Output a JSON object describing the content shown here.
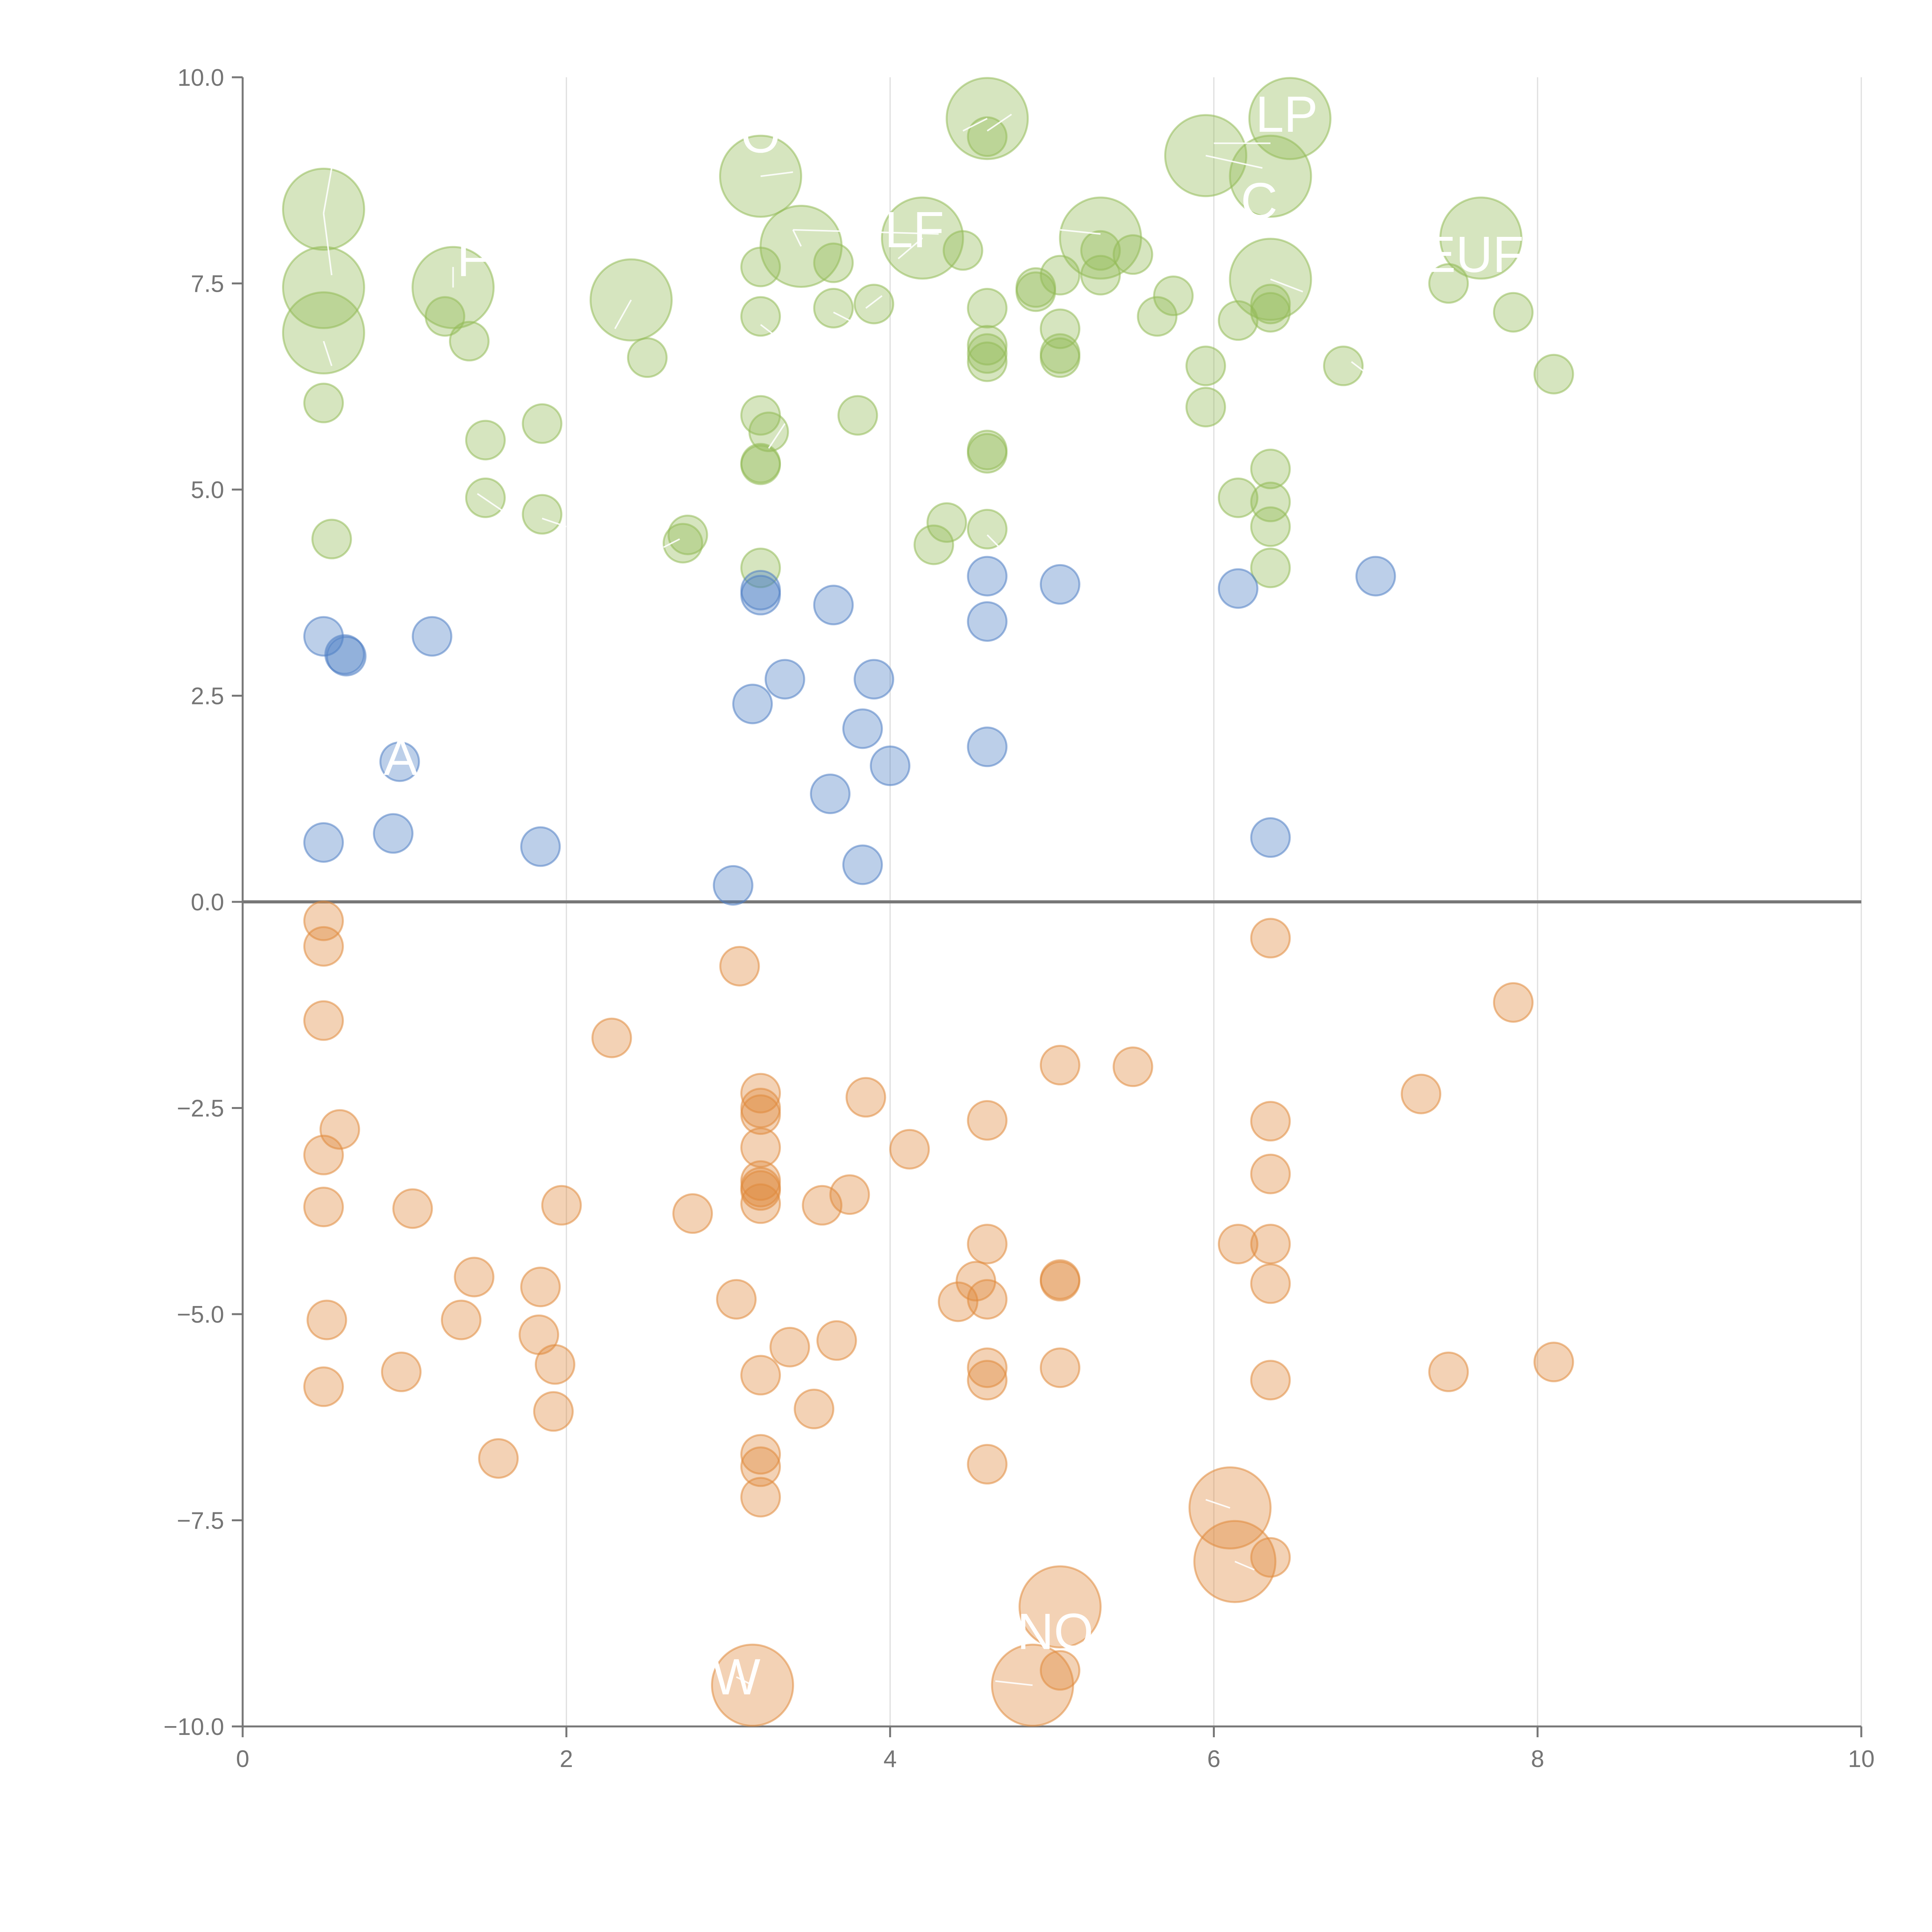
{
  "chart_data": {
    "type": "scatter",
    "xlim": [
      0,
      10
    ],
    "ylim": [
      -10,
      10
    ],
    "x_ticks": [
      0,
      2,
      4,
      6,
      8,
      10
    ],
    "x_tick_labels": [
      "0",
      "2",
      "4",
      "6",
      "8",
      "10"
    ],
    "y_ticks": [
      10,
      7.5,
      5,
      2.5,
      0,
      -2.5,
      -5,
      -7.5,
      -10
    ],
    "y_tick_labels": [
      "10.0",
      "7.5",
      "5.0",
      "2.5",
      "0.0",
      "−2.5",
      "−5.0",
      "−7.5",
      "−10.0"
    ],
    "grid": "vertical",
    "zero_line": true,
    "colors": {
      "green": "#93bb58",
      "blue": "#5080c4",
      "orange": "#e08a3c"
    },
    "series": [
      {
        "color_key": "green",
        "points": [
          [
            0.5,
            8.4,
            "l"
          ],
          [
            0.5,
            7.45,
            "l"
          ],
          [
            0.5,
            6.9,
            "l"
          ],
          [
            0.5,
            6.05
          ],
          [
            0.55,
            4.4
          ],
          [
            1.3,
            7.45,
            "l"
          ],
          [
            1.25,
            7.1
          ],
          [
            1.4,
            6.8
          ],
          [
            1.5,
            5.6
          ],
          [
            1.5,
            4.9
          ],
          [
            1.85,
            5.8
          ],
          [
            1.85,
            4.7
          ],
          [
            2.4,
            7.3,
            "l"
          ],
          [
            2.5,
            6.6
          ],
          [
            2.75,
            4.45
          ],
          [
            2.72,
            4.35
          ],
          [
            3.2,
            8.8,
            "l"
          ],
          [
            3.2,
            7.7
          ],
          [
            3.2,
            7.1
          ],
          [
            3.2,
            5.9
          ],
          [
            3.25,
            5.7
          ],
          [
            3.2,
            5.3
          ],
          [
            3.2,
            5.32
          ],
          [
            3.2,
            4.05
          ],
          [
            3.45,
            7.95,
            "l"
          ],
          [
            3.65,
            7.75
          ],
          [
            3.65,
            7.2
          ],
          [
            3.9,
            7.25
          ],
          [
            3.8,
            5.9
          ],
          [
            4.2,
            8.05,
            "l"
          ],
          [
            4.45,
            7.9
          ],
          [
            4.35,
            4.6
          ],
          [
            4.27,
            4.33
          ],
          [
            4.6,
            9.5,
            "l"
          ],
          [
            4.6,
            9.28
          ],
          [
            4.6,
            7.2
          ],
          [
            4.6,
            6.75
          ],
          [
            4.6,
            6.65
          ],
          [
            4.6,
            6.55
          ],
          [
            4.6,
            5.48
          ],
          [
            4.6,
            5.44
          ],
          [
            4.6,
            4.52
          ],
          [
            4.9,
            7.45
          ],
          [
            4.9,
            7.4
          ],
          [
            5.05,
            7.6
          ],
          [
            5.05,
            6.95
          ],
          [
            5.05,
            6.65
          ],
          [
            5.05,
            6.6
          ],
          [
            5.3,
            8.05,
            "l"
          ],
          [
            5.3,
            7.9
          ],
          [
            5.3,
            7.6
          ],
          [
            5.5,
            7.85
          ],
          [
            5.65,
            7.1
          ],
          [
            5.75,
            7.35
          ],
          [
            5.95,
            9.05,
            "l"
          ],
          [
            5.95,
            6.5
          ],
          [
            5.95,
            6.0
          ],
          [
            6.15,
            7.05
          ],
          [
            6.15,
            4.9
          ],
          [
            6.35,
            8.8,
            "l"
          ],
          [
            6.35,
            7.55,
            "l"
          ],
          [
            6.35,
            7.25
          ],
          [
            6.35,
            7.15
          ],
          [
            6.35,
            5.25
          ],
          [
            6.35,
            4.85
          ],
          [
            6.35,
            4.55
          ],
          [
            6.35,
            4.05
          ],
          [
            6.47,
            9.5,
            "l"
          ],
          [
            6.8,
            6.5
          ],
          [
            7.45,
            7.5
          ],
          [
            7.65,
            8.05,
            "l"
          ],
          [
            7.85,
            7.15
          ],
          [
            8.1,
            6.4
          ]
        ]
      },
      {
        "color_key": "blue",
        "points": [
          [
            0.5,
            3.22
          ],
          [
            0.63,
            3.0
          ],
          [
            0.64,
            2.98
          ],
          [
            1.17,
            3.22
          ],
          [
            0.97,
            1.7
          ],
          [
            0.5,
            0.72
          ],
          [
            0.93,
            0.83
          ],
          [
            1.84,
            0.67
          ],
          [
            3.03,
            0.2
          ],
          [
            3.15,
            2.4
          ],
          [
            3.2,
            3.78
          ],
          [
            3.2,
            3.72
          ],
          [
            3.35,
            2.7
          ],
          [
            3.65,
            3.6
          ],
          [
            3.63,
            1.31
          ],
          [
            3.83,
            2.1
          ],
          [
            3.9,
            2.7
          ],
          [
            3.83,
            0.45
          ],
          [
            4.0,
            1.65
          ],
          [
            4.6,
            3.95
          ],
          [
            4.6,
            3.4
          ],
          [
            4.6,
            1.88
          ],
          [
            5.05,
            3.85
          ],
          [
            6.15,
            3.8
          ],
          [
            6.35,
            0.78
          ],
          [
            7.0,
            3.95
          ]
        ]
      },
      {
        "color_key": "orange",
        "points": [
          [
            0.5,
            -0.23
          ],
          [
            0.5,
            -0.54
          ],
          [
            0.5,
            -1.44
          ],
          [
            0.6,
            -2.76
          ],
          [
            0.5,
            -3.07
          ],
          [
            0.5,
            -3.7
          ],
          [
            0.52,
            -5.07
          ],
          [
            0.5,
            -5.88
          ],
          [
            0.98,
            -5.7
          ],
          [
            1.05,
            -3.72
          ],
          [
            1.35,
            -5.07
          ],
          [
            1.43,
            -4.55
          ],
          [
            1.58,
            -6.75
          ],
          [
            1.84,
            -4.67
          ],
          [
            1.83,
            -5.25
          ],
          [
            1.93,
            -5.61
          ],
          [
            1.92,
            -6.18
          ],
          [
            1.97,
            -3.68
          ],
          [
            2.28,
            -1.65
          ],
          [
            2.78,
            -3.78
          ],
          [
            3.07,
            -0.78
          ],
          [
            3.05,
            -4.82
          ],
          [
            3.2,
            -2.32
          ],
          [
            3.2,
            -2.5
          ],
          [
            3.2,
            -2.58
          ],
          [
            3.2,
            -2.98
          ],
          [
            3.2,
            -3.38
          ],
          [
            3.2,
            -3.46
          ],
          [
            3.2,
            -3.5
          ],
          [
            3.2,
            -3.66
          ],
          [
            3.2,
            -5.74
          ],
          [
            3.2,
            -6.7
          ],
          [
            3.2,
            -6.85
          ],
          [
            3.2,
            -7.22
          ],
          [
            3.15,
            -9.5,
            "l"
          ],
          [
            3.38,
            -5.4
          ],
          [
            3.53,
            -6.15
          ],
          [
            3.58,
            -3.68
          ],
          [
            3.75,
            -3.55
          ],
          [
            3.67,
            -5.32
          ],
          [
            3.85,
            -2.37
          ],
          [
            4.12,
            -3.0
          ],
          [
            4.42,
            -4.85
          ],
          [
            4.53,
            -4.6
          ],
          [
            4.6,
            -2.65
          ],
          [
            4.6,
            -4.15
          ],
          [
            4.6,
            -4.82
          ],
          [
            4.6,
            -5.65
          ],
          [
            4.6,
            -5.8
          ],
          [
            4.6,
            -6.82
          ],
          [
            4.88,
            -9.5,
            "l"
          ],
          [
            5.05,
            -1.98
          ],
          [
            5.05,
            -4.58
          ],
          [
            5.05,
            -4.6
          ],
          [
            5.05,
            -5.65
          ],
          [
            5.05,
            -8.55,
            "l"
          ],
          [
            5.05,
            -9.32
          ],
          [
            5.5,
            -2.0
          ],
          [
            6.1,
            -7.35,
            "l"
          ],
          [
            6.15,
            -4.15
          ],
          [
            6.13,
            -8.0,
            "l"
          ],
          [
            6.35,
            -0.44
          ],
          [
            6.35,
            -2.66
          ],
          [
            6.35,
            -3.3
          ],
          [
            6.35,
            -4.15
          ],
          [
            6.35,
            -4.63
          ],
          [
            6.35,
            -5.8
          ],
          [
            6.35,
            -7.95
          ],
          [
            7.28,
            -2.33
          ],
          [
            7.45,
            -5.7
          ],
          [
            7.85,
            -1.22
          ],
          [
            8.1,
            -5.58
          ]
        ]
      }
    ],
    "point_labels": [
      {
        "text": "F",
        "x": 1.42,
        "y": 7.8
      },
      {
        "text": "O",
        "x": 3.2,
        "y": 9.3
      },
      {
        "text": "LF",
        "x": 4.15,
        "y": 8.15
      },
      {
        "text": "LP",
        "x": 6.45,
        "y": 9.55
      },
      {
        "text": "C",
        "x": 6.28,
        "y": 8.5
      },
      {
        "text": "EUF",
        "x": 7.6,
        "y": 7.85
      },
      {
        "text": "AI",
        "x": 1.02,
        "y": 1.75
      },
      {
        "text": "NO",
        "x": 5.02,
        "y": -8.85
      },
      {
        "text": "W",
        "x": 3.05,
        "y": -9.4
      }
    ],
    "leaders": [
      [
        0.55,
        8.9,
        0.5,
        8.35
      ],
      [
        0.5,
        8.35,
        0.55,
        7.6
      ],
      [
        0.5,
        6.8,
        0.55,
        6.5
      ],
      [
        1.3,
        7.45,
        1.3,
        7.7
      ],
      [
        2.4,
        7.3,
        2.3,
        6.95
      ],
      [
        3.2,
        8.8,
        3.4,
        8.85
      ],
      [
        3.45,
        7.95,
        3.4,
        8.15
      ],
      [
        3.4,
        8.15,
        4.3,
        8.1
      ],
      [
        4.2,
        8.05,
        4.05,
        7.8
      ],
      [
        3.65,
        7.15,
        3.75,
        7.05
      ],
      [
        3.85,
        7.2,
        3.95,
        7.35
      ],
      [
        3.2,
        7.0,
        3.3,
        6.85
      ],
      [
        4.6,
        9.5,
        4.45,
        9.35
      ],
      [
        4.6,
        9.35,
        4.75,
        9.55
      ],
      [
        5.95,
        9.05,
        6.3,
        8.9
      ],
      [
        6.0,
        9.2,
        6.35,
        9.2
      ],
      [
        6.35,
        7.55,
        6.55,
        7.4
      ],
      [
        5.05,
        8.15,
        5.3,
        8.1
      ],
      [
        6.85,
        6.55,
        6.95,
        6.4
      ],
      [
        4.6,
        4.45,
        4.7,
        4.25
      ],
      [
        1.45,
        4.95,
        1.6,
        4.75
      ],
      [
        2.7,
        4.4,
        2.6,
        4.3
      ],
      [
        1.85,
        4.65,
        2.0,
        4.55
      ],
      [
        6.1,
        -7.35,
        5.95,
        -7.25
      ],
      [
        6.13,
        -8.0,
        6.25,
        -8.1
      ],
      [
        3.15,
        -9.5,
        3.05,
        -9.4
      ],
      [
        4.88,
        -9.5,
        4.65,
        -9.45
      ],
      [
        3.25,
        5.5,
        3.35,
        5.8
      ]
    ]
  }
}
